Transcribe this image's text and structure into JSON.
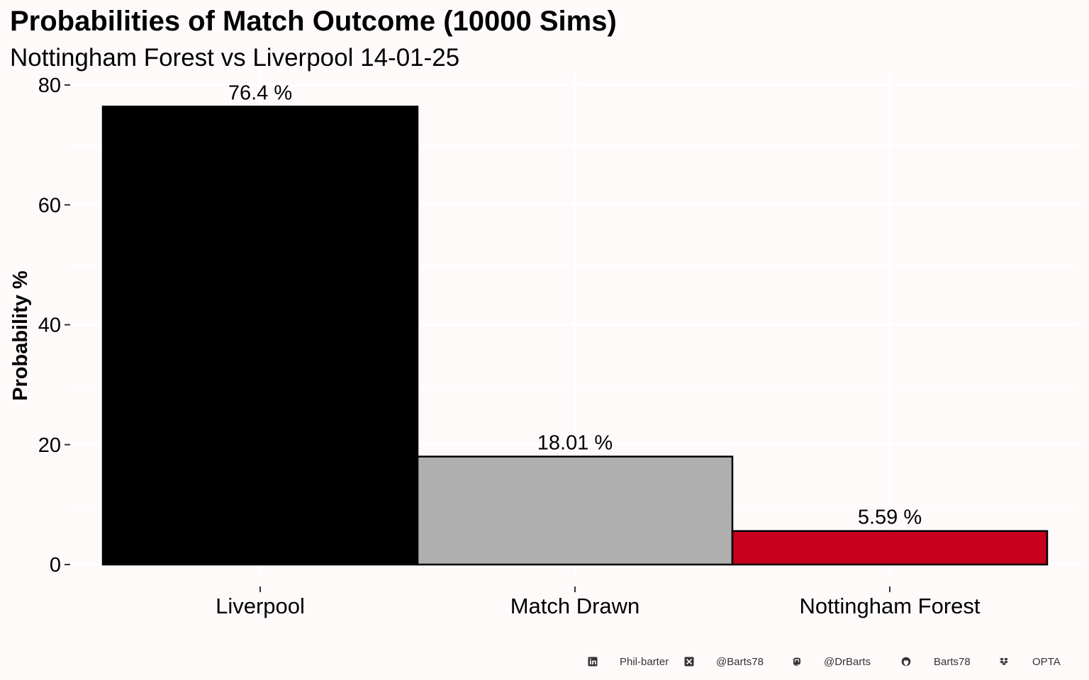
{
  "chart_data": {
    "type": "bar",
    "title": "Probabilities of Match Outcome (10000 Sims)",
    "subtitle": "Nottingham Forest vs Liverpool 14-01-25",
    "xlabel": "",
    "ylabel": "Probability %",
    "categories": [
      "Liverpool",
      "Match Drawn",
      "Nottingham Forest"
    ],
    "values": [
      76.4,
      18.01,
      5.59
    ],
    "data_labels": [
      "76.4  %",
      "18.01  %",
      "5.59  %"
    ],
    "colors": [
      "#000000",
      "#b0b0b0",
      "#c8001e"
    ],
    "ylim": [
      0,
      80
    ],
    "yticks": [
      0,
      20,
      40,
      60,
      80
    ],
    "grid": true,
    "legend": "none"
  },
  "footer": {
    "linkedin": "Phil-barter",
    "x": "@Barts78",
    "mastodon": "@DrBarts",
    "github": "Barts78",
    "dropbox": "OPTA",
    "icons": [
      "linkedin-icon",
      "x-icon",
      "mastodon-icon",
      "github-icon",
      "dropbox-icon"
    ]
  },
  "colors": {
    "background": "#fffafa",
    "text": "#000000"
  }
}
